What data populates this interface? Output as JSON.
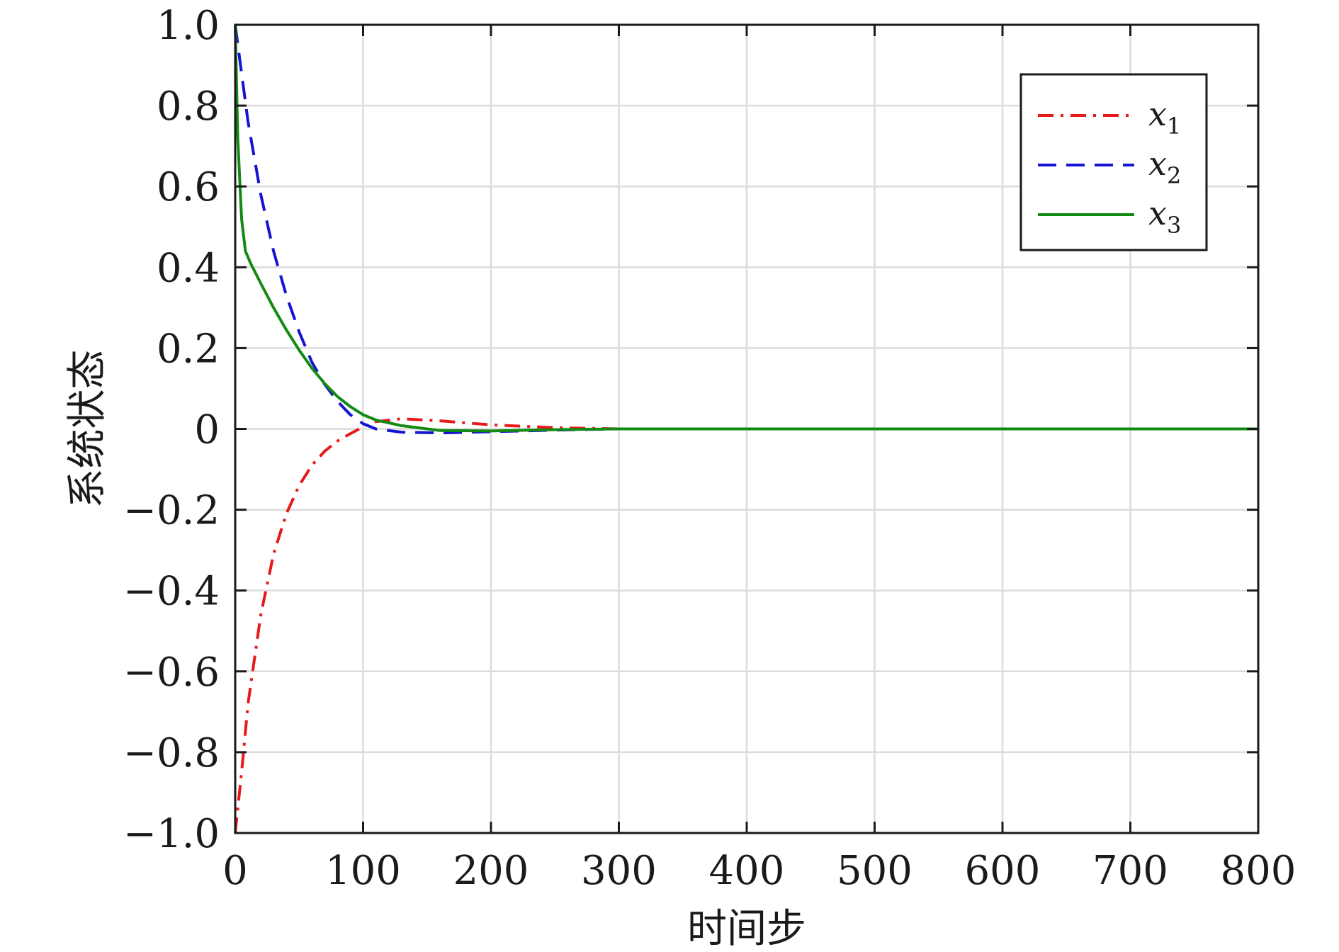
{
  "chart_data": {
    "type": "line",
    "title": "",
    "xlabel": "时间步",
    "ylabel": "系统状态",
    "xlim": [
      0,
      800
    ],
    "ylim": [
      -1.0,
      1.0
    ],
    "grid": true,
    "legend_position": "top-right",
    "x_ticks": [
      0,
      100,
      200,
      300,
      400,
      500,
      600,
      700,
      800
    ],
    "x_tick_labels": [
      "0",
      "100",
      "200",
      "300",
      "400",
      "500",
      "600",
      "700",
      "800"
    ],
    "y_ticks": [
      1.0,
      0.8,
      0.6,
      0.4,
      0.2,
      0,
      -0.2,
      -0.4,
      -0.6,
      -0.8,
      -1.0
    ],
    "y_tick_labels": [
      "1.0",
      "0.8",
      "0.6",
      "0.4",
      "0.2",
      "0",
      "−0.2",
      "−0.4",
      "−0.6",
      "−0.8",
      "−1.0"
    ],
    "series": [
      {
        "name": "x",
        "subscript": "1",
        "color": "#e8191b",
        "dash": "dashdot",
        "x": [
          0,
          5,
          10,
          20,
          30,
          40,
          50,
          60,
          70,
          80,
          90,
          100,
          110,
          130,
          160,
          200,
          250,
          300,
          400,
          500,
          600,
          700,
          800
        ],
        "y": [
          -1.0,
          -0.85,
          -0.68,
          -0.46,
          -0.31,
          -0.21,
          -0.14,
          -0.09,
          -0.055,
          -0.03,
          -0.012,
          0.005,
          0.018,
          0.025,
          0.02,
          0.01,
          0.003,
          0.0,
          0.0,
          0.0,
          0.0,
          0.0,
          0.0
        ]
      },
      {
        "name": "x",
        "subscript": "2",
        "color": "#1414d2",
        "dash": "dashed",
        "x": [
          0,
          5,
          10,
          20,
          30,
          40,
          50,
          60,
          70,
          80,
          90,
          100,
          110,
          130,
          160,
          200,
          250,
          300,
          400,
          500,
          600,
          700,
          800
        ],
        "y": [
          1.0,
          0.88,
          0.76,
          0.58,
          0.44,
          0.33,
          0.24,
          0.165,
          0.11,
          0.068,
          0.035,
          0.013,
          0.0,
          -0.008,
          -0.01,
          -0.007,
          -0.003,
          0.0,
          0.0,
          0.0,
          0.0,
          0.0,
          0.0
        ]
      },
      {
        "name": "x",
        "subscript": "3",
        "color": "#138a13",
        "dash": "solid",
        "x": [
          0,
          2,
          5,
          8,
          12,
          20,
          30,
          40,
          50,
          60,
          70,
          80,
          90,
          100,
          110,
          130,
          160,
          200,
          250,
          300,
          400,
          500,
          600,
          700,
          800
        ],
        "y": [
          1.0,
          0.72,
          0.52,
          0.44,
          0.41,
          0.36,
          0.3,
          0.245,
          0.195,
          0.15,
          0.112,
          0.08,
          0.055,
          0.035,
          0.022,
          0.008,
          -0.004,
          -0.005,
          -0.002,
          0.0,
          0.0,
          0.0,
          0.0,
          0.0,
          0.0
        ]
      }
    ]
  }
}
